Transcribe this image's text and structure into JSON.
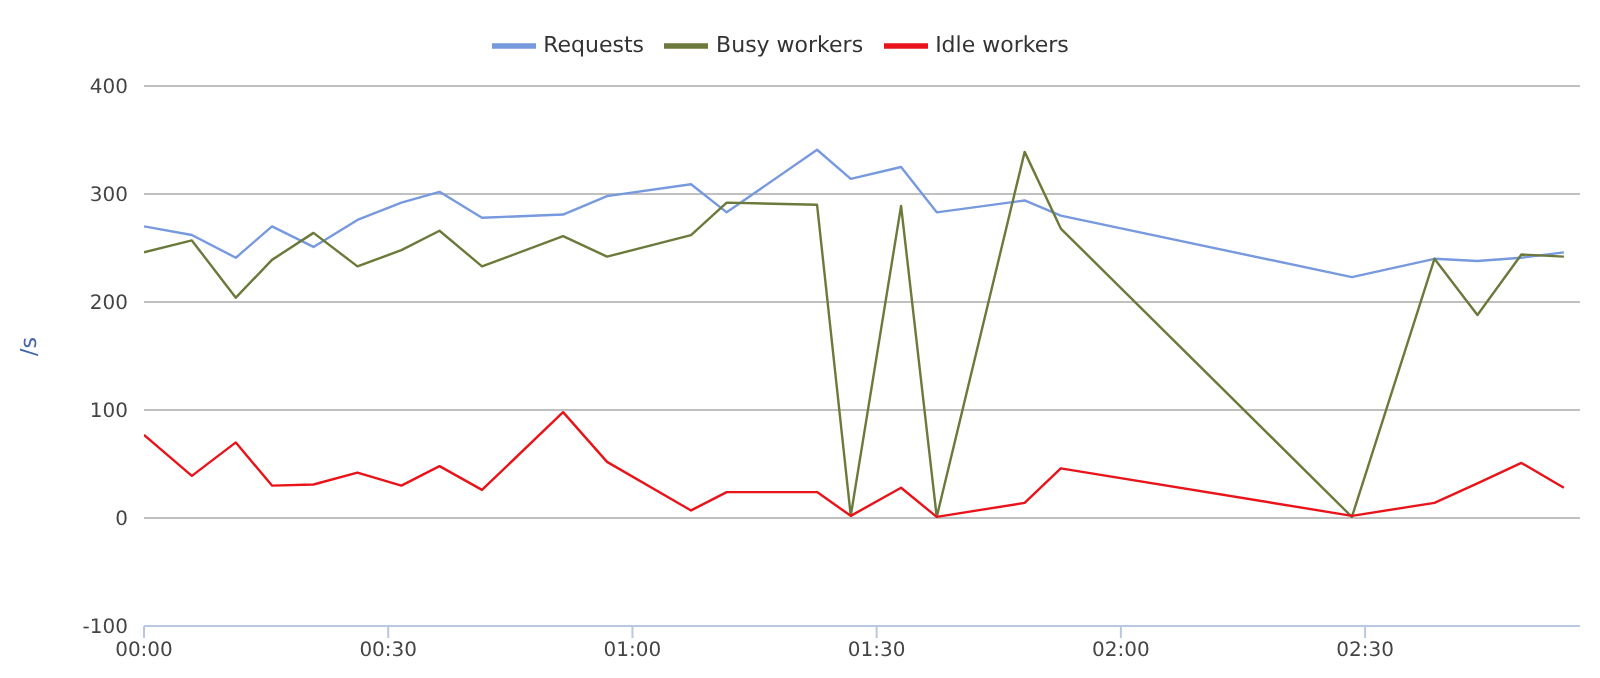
{
  "chart_data": {
    "type": "line",
    "ylabel": "/s",
    "x": [
      0,
      0.098,
      0.188,
      0.262,
      0.347,
      0.437,
      0.527,
      0.605,
      0.692,
      0.858,
      0.948,
      1.12,
      1.193,
      1.378,
      1.447,
      1.55,
      1.623,
      1.803,
      1.877,
      2.473,
      2.642,
      2.73,
      2.82,
      2.907
    ],
    "series": [
      {
        "name": "Requests",
        "color": "#7799dd",
        "values": [
          270,
          262,
          241,
          270,
          251,
          276,
          292,
          302,
          278,
          281,
          298,
          309,
          283,
          341,
          314,
          325,
          283,
          294,
          280,
          223,
          240,
          238,
          241,
          246
        ]
      },
      {
        "name": "Busy workers",
        "color": "#6b7a3a",
        "values": [
          246,
          257,
          204,
          239,
          264,
          233,
          248,
          266,
          233,
          261,
          242,
          262,
          292,
          290,
          2,
          289,
          1,
          339,
          268,
          1,
          240,
          188,
          244,
          242
        ]
      },
      {
        "name": "Idle workers",
        "color": "#e8141a",
        "values": [
          77,
          39,
          70,
          30,
          31,
          42,
          30,
          48,
          26,
          98,
          52,
          7,
          24,
          24,
          2,
          28,
          1,
          14,
          46,
          2,
          14,
          32,
          51,
          28
        ]
      }
    ],
    "xlim": [
      0,
      2.94
    ],
    "xticks": [
      {
        "value": 0,
        "label": "00:00"
      },
      {
        "value": 0.5,
        "label": "00:30"
      },
      {
        "value": 1,
        "label": "01:00"
      },
      {
        "value": 1.5,
        "label": "01:30"
      },
      {
        "value": 2,
        "label": "02:00"
      },
      {
        "value": 2.5,
        "label": "02:30"
      }
    ],
    "ylim": [
      -100,
      400
    ],
    "yticks": [
      -100,
      0,
      100,
      200,
      300,
      400
    ],
    "grid": "y",
    "legend": "top",
    "marker": "none",
    "line_style": "solid"
  }
}
